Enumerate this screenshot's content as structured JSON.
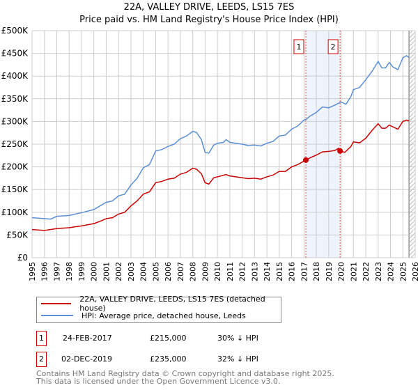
{
  "title": "22A, VALLEY DRIVE, LEEDS, LS15 7ES",
  "subtitle": "Price paid vs. HM Land Registry's House Price Index (HPI)",
  "chart_data": {
    "type": "line",
    "xlim": [
      1995,
      2026
    ],
    "ylim": [
      0,
      500000
    ],
    "yticks": [
      0,
      50000,
      100000,
      150000,
      200000,
      250000,
      300000,
      350000,
      400000,
      450000,
      500000
    ],
    "ytick_labels": [
      "£0",
      "£50K",
      "£100K",
      "£150K",
      "£200K",
      "£250K",
      "£300K",
      "£350K",
      "£400K",
      "£450K",
      "£500K"
    ],
    "xticks": [
      1995,
      1996,
      1997,
      1998,
      1999,
      2000,
      2001,
      2002,
      2003,
      2004,
      2005,
      2006,
      2007,
      2008,
      2009,
      2010,
      2011,
      2012,
      2013,
      2014,
      2015,
      2016,
      2017,
      2018,
      2019,
      2020,
      2021,
      2022,
      2023,
      2024,
      2025,
      2026
    ],
    "series": [
      {
        "name": "22A, VALLEY DRIVE, LEEDS, LS15 7ES (detached house)",
        "color": "#cc0000",
        "x": [
          1995,
          1996,
          1997,
          1998,
          1999,
          2000,
          2000.5,
          2001,
          2001.5,
          2002,
          2002.5,
          2003,
          2003.5,
          2004,
          2004.5,
          2005,
          2005.5,
          2006,
          2006.5,
          2007,
          2007.5,
          2008,
          2008.3,
          2008.7,
          2009,
          2009.3,
          2009.7,
          2010,
          2010.7,
          2011,
          2012,
          2012.5,
          2013,
          2013.5,
          2014,
          2014.5,
          2015,
          2015.5,
          2016,
          2016.5,
          2017.15,
          2017.5,
          2018,
          2018.5,
          2019,
          2019.5,
          2019.8,
          2019.92,
          2020.3,
          2020.8,
          2021,
          2021.5,
          2022,
          2022.5,
          2023,
          2023.3,
          2023.6,
          2023.9,
          2024.2,
          2024.6,
          2025,
          2025.3,
          2025.5
        ],
        "y": [
          62,
          60,
          64,
          66,
          70,
          75,
          80,
          86,
          88,
          96,
          100,
          114,
          125,
          140,
          145,
          165,
          168,
          173,
          175,
          184,
          188,
          197,
          195,
          185,
          165,
          162,
          176,
          178,
          183,
          180,
          176,
          174,
          175,
          173,
          178,
          182,
          190,
          190,
          200,
          205,
          215,
          220,
          226,
          233,
          234,
          236,
          241,
          235,
          232,
          245,
          255,
          253,
          263,
          280,
          295,
          285,
          285,
          292,
          288,
          283,
          300,
          303,
          301
        ]
      },
      {
        "name": "HPI: Average price, detached house, Leeds",
        "color": "#5b8fd6",
        "x": [
          1995,
          1996,
          1996.5,
          1997,
          1998,
          1999,
          2000,
          2000.5,
          2001,
          2001.5,
          2002,
          2002.5,
          2003,
          2003.5,
          2004,
          2004.5,
          2005,
          2005.5,
          2006,
          2006.5,
          2007,
          2007.5,
          2008,
          2008.3,
          2008.7,
          2009,
          2009.3,
          2009.7,
          2010,
          2010.5,
          2010.7,
          2011,
          2011.5,
          2012,
          2012.5,
          2013,
          2013.5,
          2014,
          2014.5,
          2015,
          2015.5,
          2016,
          2016.5,
          2017,
          2017.2,
          2017.5,
          2018,
          2018.5,
          2019,
          2019.5,
          2020,
          2020.4,
          2020.8,
          2021,
          2021.5,
          2022,
          2022.5,
          2023,
          2023.3,
          2023.6,
          2023.9,
          2024.2,
          2024.6,
          2025,
          2025.3,
          2025.5
        ],
        "y": [
          88,
          86,
          85,
          91,
          93,
          99,
          106,
          114,
          122,
          125,
          136,
          140,
          160,
          175,
          198,
          205,
          235,
          238,
          245,
          250,
          262,
          268,
          278,
          276,
          260,
          232,
          230,
          248,
          252,
          254,
          260,
          254,
          252,
          250,
          247,
          248,
          246,
          252,
          256,
          268,
          270,
          283,
          290,
          303,
          305,
          312,
          320,
          332,
          330,
          336,
          343,
          338,
          355,
          370,
          375,
          392,
          410,
          432,
          418,
          418,
          430,
          420,
          414,
          440,
          445,
          441
        ]
      }
    ],
    "y_unit": "thousand GBP",
    "sales": [
      {
        "label": "1",
        "x": 2017.15,
        "y": 215
      },
      {
        "label": "2",
        "x": 2019.92,
        "y": 235
      }
    ],
    "forecast_start": 2025.5
  },
  "transactions": [
    {
      "num": "1",
      "date": "24-FEB-2017",
      "price": "£215,000",
      "hpi": "30% ↓ HPI"
    },
    {
      "num": "2",
      "date": "02-DEC-2019",
      "price": "£235,000",
      "hpi": "32% ↓ HPI"
    }
  ],
  "footer": [
    "Contains HM Land Registry data © Crown copyright and database right 2025.",
    "This data is licensed under the Open Government Licence v3.0."
  ]
}
